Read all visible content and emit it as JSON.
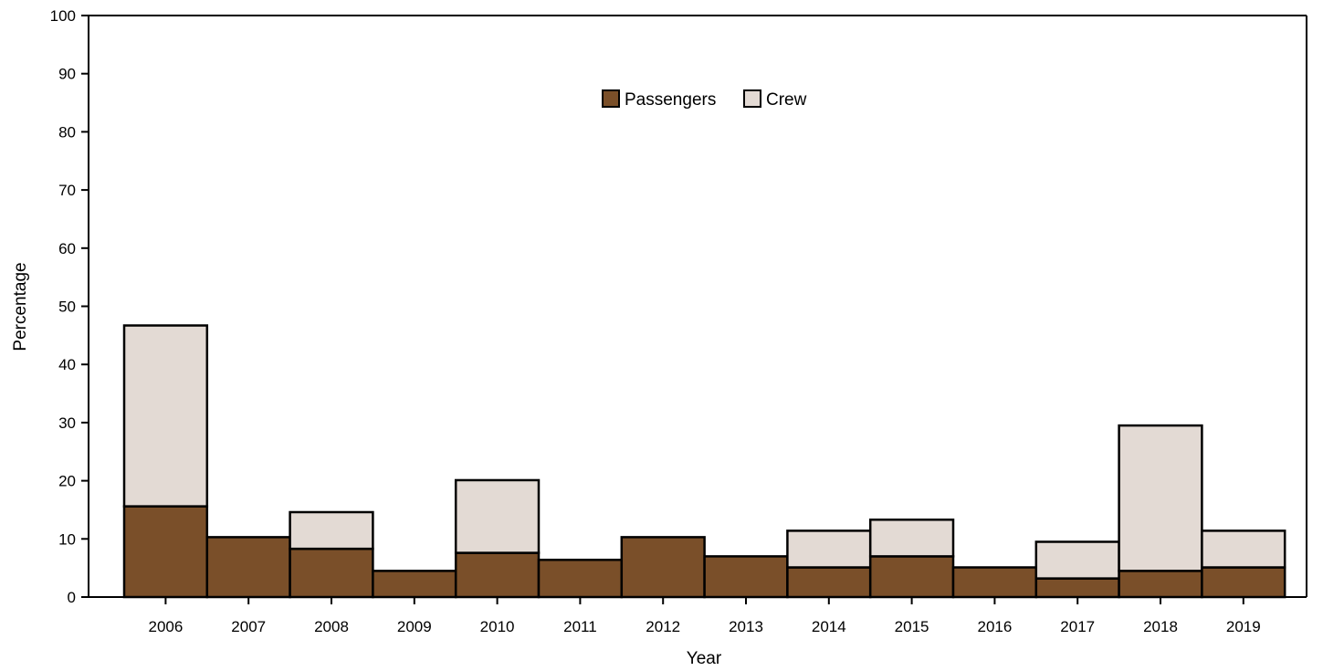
{
  "chart_data": {
    "type": "bar",
    "stacked": true,
    "title": "",
    "xlabel": "Year",
    "ylabel": "Percentage",
    "ylim": [
      0,
      100
    ],
    "yticks": [
      0,
      10,
      20,
      30,
      40,
      50,
      60,
      70,
      80,
      90,
      100
    ],
    "categories": [
      "2006",
      "2007",
      "2008",
      "2009",
      "2010",
      "2011",
      "2012",
      "2013",
      "2014",
      "2015",
      "2016",
      "2017",
      "2018",
      "2019"
    ],
    "series": [
      {
        "name": "Passengers",
        "color": "#7a4f29",
        "values": [
          15.6,
          10.3,
          8.3,
          4.5,
          7.6,
          6.4,
          10.3,
          7.0,
          5.1,
          7.0,
          5.1,
          3.2,
          4.5,
          5.1
        ]
      },
      {
        "name": "Crew",
        "color": "#e3dad4",
        "values": [
          31.1,
          0,
          6.3,
          0,
          12.5,
          0,
          0,
          0,
          6.3,
          6.3,
          0,
          6.3,
          25.0,
          6.3
        ]
      }
    ],
    "grid": false,
    "legend_position": "top-center"
  }
}
